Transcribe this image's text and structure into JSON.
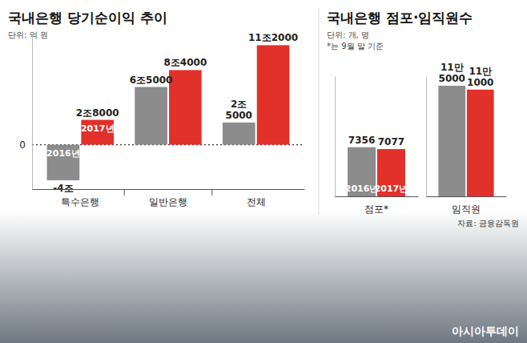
{
  "chart_data": [
    {
      "type": "bar",
      "title": "국내은행 당기순이익 추이",
      "subtitle": "단위: 억 원",
      "categories": [
        "특수은행",
        "일반은행",
        "전체"
      ],
      "series": [
        {
          "name": "2016년",
          "color": "#8c8c8c",
          "values": [
            -40000,
            65000,
            25000
          ],
          "value_labels": [
            "-4조",
            "6조5000",
            "2조 5000"
          ]
        },
        {
          "name": "2017년",
          "color": "#e2302a",
          "values": [
            28000,
            84000,
            112000
          ],
          "value_labels": [
            "2조8000",
            "8조4000",
            "11조2000"
          ]
        }
      ],
      "ylim": [
        -50000,
        125000
      ],
      "yticks": [
        0
      ],
      "grid": true,
      "data_labels": true
    },
    {
      "type": "bar",
      "title": "국내은행 점포·임직원수",
      "subtitle": "단위: 개, 명",
      "note": "*는 9월 말 기준",
      "categories": [
        "점포*"
      ],
      "series": [
        {
          "name": "2016년",
          "color": "#8c8c8c",
          "values": [
            7356
          ]
        },
        {
          "name": "2017년",
          "color": "#e2302a",
          "values": [
            7077
          ]
        }
      ],
      "ylim": [
        0,
        18000
      ],
      "tick_labels": "x",
      "data_labels": true
    },
    {
      "type": "bar",
      "categories": [
        "임직원"
      ],
      "series": [
        {
          "color": "#8c8c8c",
          "values": [
            115000
          ],
          "value_labels": [
            "11만 5000"
          ]
        },
        {
          "color": "#e2302a",
          "values": [
            111000
          ],
          "value_labels": [
            "11만 1000"
          ]
        }
      ],
      "ylim": [
        0,
        125000
      ],
      "tick_labels": "x",
      "data_labels": true,
      "source": "자료: 금융감독원",
      "credit": "아시아투데이"
    }
  ]
}
